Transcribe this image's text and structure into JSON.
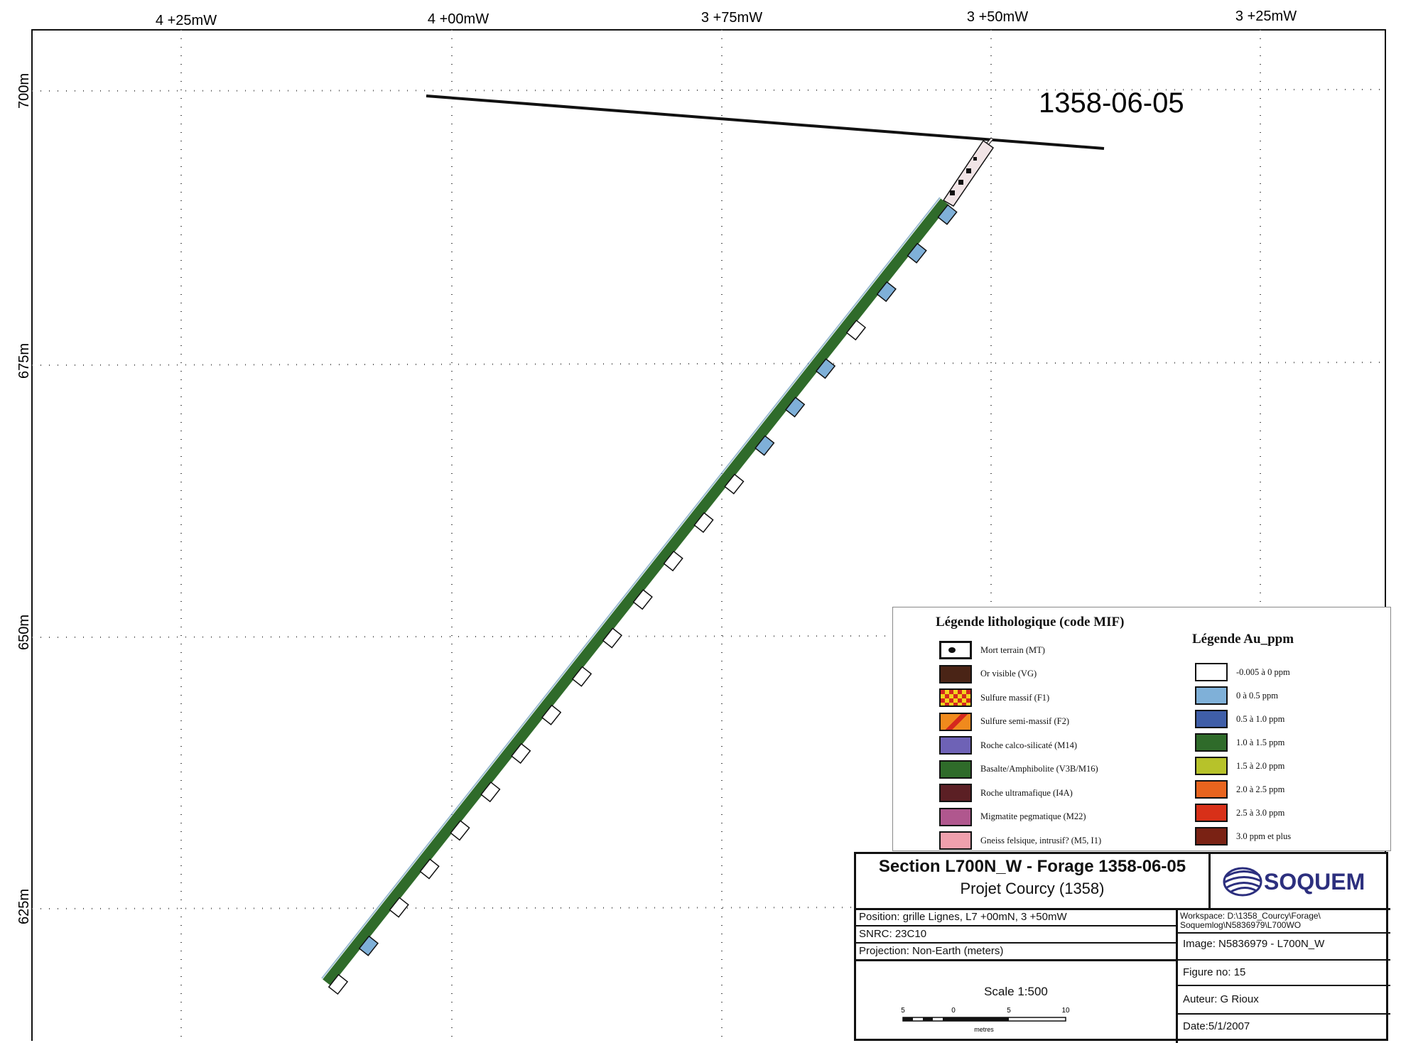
{
  "map": {
    "hole_label": "1358-06-05",
    "x_ticks": [
      "4 +25mW",
      "4 +00mW",
      "3 +75mW",
      "3 +50mW",
      "3 +25mW"
    ],
    "y_ticks": [
      "700m",
      "675m",
      "650m",
      "625m"
    ],
    "colors": {
      "trace": "#2f6b2a",
      "assay_low": "#7fb0d8",
      "assay_zero": "#ffffff",
      "overburden": "#f1e4e6"
    }
  },
  "legend_litho": {
    "title": "Légende lithologique (code MIF)",
    "items": [
      {
        "label": "Mort terrain (MT)",
        "color": "#222222",
        "icon": "overburden-dot-icon"
      },
      {
        "label": "Or visible (VG)",
        "color": "#4a2416"
      },
      {
        "label": "Sulfure massif (F1)",
        "color": "#f2d21d",
        "icon": "massive-sulfide-pattern-icon"
      },
      {
        "label": "Sulfure semi-massif (F2)",
        "color": "#f08a1d",
        "icon": "semi-massive-sulfide-pattern-icon"
      },
      {
        "label": "Roche calco-silicaté (M14)",
        "color": "#6e62b6"
      },
      {
        "label": "Basalte/Amphibolite (V3B/M16)",
        "color": "#2f6b2a"
      },
      {
        "label": "Roche ultramafique (I4A)",
        "color": "#5b1f24"
      },
      {
        "label": "Migmatite pegmatique (M22)",
        "color": "#b0578e"
      },
      {
        "label": "Gneiss felsique, intrusif? (M5, I1)",
        "color": "#f0a0ad"
      }
    ]
  },
  "legend_au": {
    "title": "Légende Au_ppm",
    "items": [
      {
        "label": "-0.005 à 0 ppm",
        "color": "#ffffff"
      },
      {
        "label": "0 à 0.5 ppm",
        "color": "#7fb0d8"
      },
      {
        "label": "0.5 à 1.0 ppm",
        "color": "#3f5ea8"
      },
      {
        "label": "1.0 à 1.5 ppm",
        "color": "#2f6b2a"
      },
      {
        "label": "1.5 à 2.0 ppm",
        "color": "#b7c22a"
      },
      {
        "label": "2.0 à 2.5 ppm",
        "color": "#e8641e"
      },
      {
        "label": "2.5 à 3.0 ppm",
        "color": "#d83018"
      },
      {
        "label": "3.0 ppm et plus",
        "color": "#7a2214"
      }
    ]
  },
  "title_block": {
    "title": "Section L700N_W - Forage 1358-06-05",
    "subtitle": "Projet Courcy (1358)",
    "logo_text": "SOQUEM",
    "position": "Position: grille Lignes, L7 +00mN, 3 +50mW",
    "snrc": "SNRC:  23C10",
    "projection": "Projection:  Non-Earth (meters)",
    "workspace_line1": "Workspace:  D:\\1358_Courcy\\Forage\\",
    "workspace_line2": "Soquemlog\\N5836979\\L700WO",
    "image": "Image:  N5836979 - L700N_W",
    "figure": "Figure no: 15",
    "author": "Auteur:  G Rioux",
    "date": "Date:5/1/2007",
    "scale": "Scale 1:500",
    "scale_ticks": [
      "5",
      "0",
      "5",
      "10"
    ],
    "scale_unit": "metres"
  }
}
